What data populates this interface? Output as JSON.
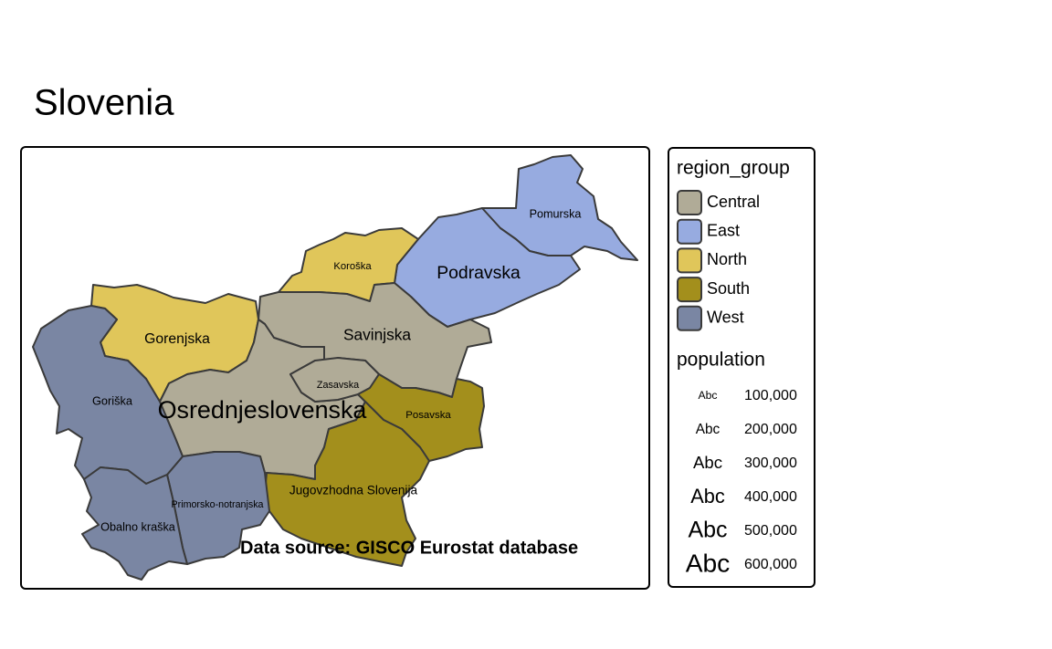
{
  "title": "Slovenia",
  "caption": "Data source: GISCO Eurostat database",
  "legend": {
    "fill_title": "region_group",
    "groups": [
      {
        "name": "Central",
        "color": "#b0ab97"
      },
      {
        "name": "East",
        "color": "#97abe0"
      },
      {
        "name": "North",
        "color": "#e0c65a"
      },
      {
        "name": "South",
        "color": "#a38f1c"
      },
      {
        "name": "West",
        "color": "#7a86a3"
      }
    ],
    "size_title": "population",
    "size_sample": "Abc",
    "sizes": [
      {
        "value": 100000,
        "label": "100,000"
      },
      {
        "value": 200000,
        "label": "200,000"
      },
      {
        "value": 300000,
        "label": "300,000"
      },
      {
        "value": 400000,
        "label": "400,000"
      },
      {
        "value": 500000,
        "label": "500,000"
      },
      {
        "value": 600000,
        "label": "600,000"
      }
    ]
  },
  "regions": [
    {
      "name": "Pomurska",
      "group": "East",
      "population": 114000
    },
    {
      "name": "Podravska",
      "group": "East",
      "population": 325000
    },
    {
      "name": "Koroška",
      "group": "North",
      "population": 71000
    },
    {
      "name": "Gorenjska",
      "group": "North",
      "population": 210000
    },
    {
      "name": "Savinjska",
      "group": "Central",
      "population": 260000
    },
    {
      "name": "Zasavska",
      "group": "Central",
      "population": 57000
    },
    {
      "name": "Osrednjeslovenska",
      "group": "Central",
      "population": 560000
    },
    {
      "name": "Posavska",
      "group": "South",
      "population": 76000
    },
    {
      "name": "Jugovzhodna Slovenija",
      "group": "South",
      "population": 145000
    },
    {
      "name": "Primorsko-notranjska",
      "group": "West",
      "population": 53000
    },
    {
      "name": "Goriška",
      "group": "West",
      "population": 118000
    },
    {
      "name": "Obalno kraška",
      "group": "West",
      "population": 115000
    }
  ]
}
